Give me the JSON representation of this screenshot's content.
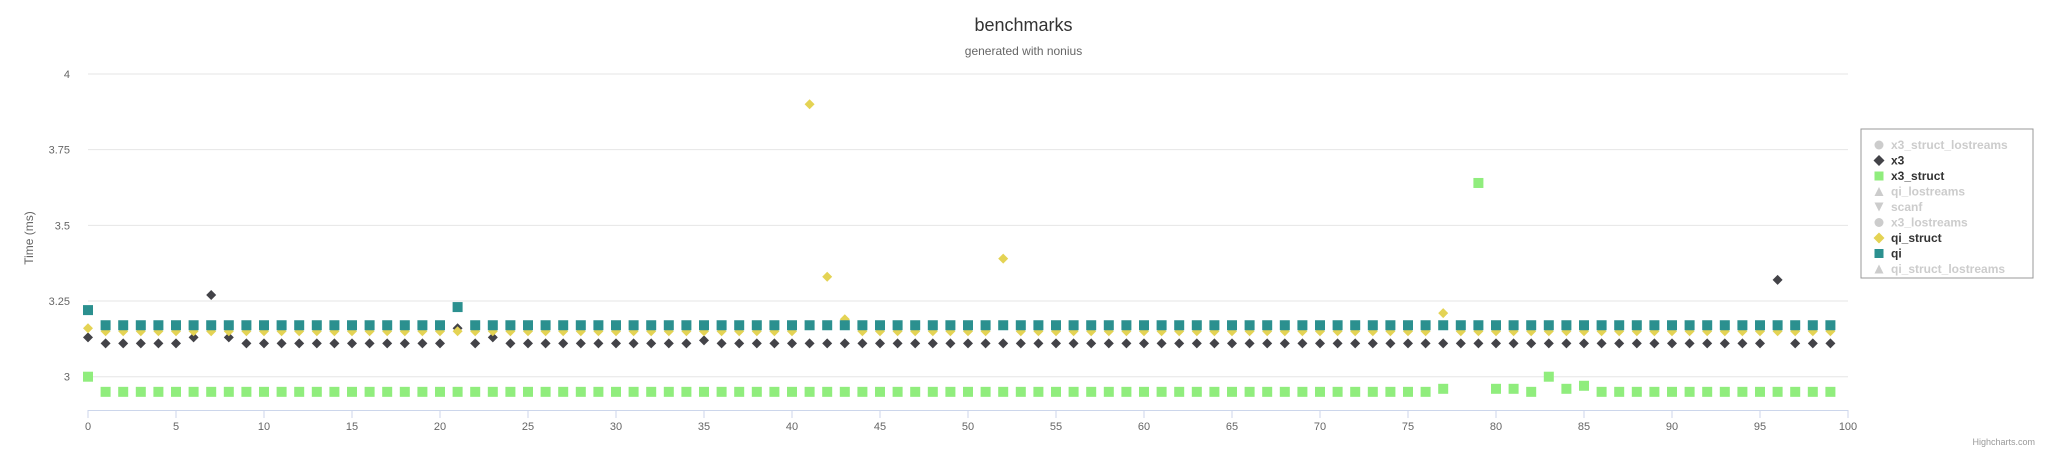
{
  "chart_data": {
    "type": "scatter",
    "title": "benchmarks",
    "subtitle": "generated with nonius",
    "ylabel": "Time (ms)",
    "xlabel": "",
    "xlim": [
      0,
      100
    ],
    "ylim": [
      2.89,
      4.0
    ],
    "xticks": [
      0,
      5,
      10,
      15,
      20,
      25,
      30,
      35,
      40,
      45,
      50,
      55,
      60,
      65,
      70,
      75,
      80,
      85,
      90,
      95,
      100
    ],
    "yticks": [
      3,
      3.25,
      3.5,
      3.75,
      4
    ],
    "grid": "horizontal",
    "legend_position": "right",
    "credits": "Highcharts.com",
    "series": [
      {
        "name": "x3_struct_lostreams",
        "visible": false,
        "marker": "circle",
        "color": "#cccccc",
        "values": []
      },
      {
        "name": "x3",
        "visible": true,
        "marker": "diamond",
        "color": "#434348",
        "values": [
          3.13,
          3.11,
          3.11,
          3.11,
          3.11,
          3.11,
          3.13,
          3.27,
          3.13,
          3.11,
          3.11,
          3.11,
          3.11,
          3.11,
          3.11,
          3.11,
          3.11,
          3.11,
          3.11,
          3.11,
          3.11,
          3.16,
          3.11,
          3.13,
          3.11,
          3.11,
          3.11,
          3.11,
          3.11,
          3.11,
          3.11,
          3.11,
          3.11,
          3.11,
          3.11,
          3.12,
          3.11,
          3.11,
          3.11,
          3.11,
          3.11,
          3.11,
          3.11,
          3.11,
          3.11,
          3.11,
          3.11,
          3.11,
          3.11,
          3.11,
          3.11,
          3.11,
          3.11,
          3.11,
          3.11,
          3.11,
          3.11,
          3.11,
          3.11,
          3.11,
          3.11,
          3.11,
          3.11,
          3.11,
          3.11,
          3.11,
          3.11,
          3.11,
          3.11,
          3.11,
          3.11,
          3.11,
          3.11,
          3.11,
          3.11,
          3.11,
          3.11,
          3.11,
          3.11,
          3.11,
          3.11,
          3.11,
          3.11,
          3.11,
          3.11,
          3.11,
          3.11,
          3.11,
          3.11,
          3.11,
          3.11,
          3.11,
          3.11,
          3.11,
          3.11,
          3.11,
          3.32,
          3.11,
          3.11,
          3.11
        ]
      },
      {
        "name": "x3_struct",
        "visible": true,
        "marker": "square",
        "color": "#90ed7d",
        "values": [
          3.0,
          2.95,
          2.95,
          2.95,
          2.95,
          2.95,
          2.95,
          2.95,
          2.95,
          2.95,
          2.95,
          2.95,
          2.95,
          2.95,
          2.95,
          2.95,
          2.95,
          2.95,
          2.95,
          2.95,
          2.95,
          2.95,
          2.95,
          2.95,
          2.95,
          2.95,
          2.95,
          2.95,
          2.95,
          2.95,
          2.95,
          2.95,
          2.95,
          2.95,
          2.95,
          2.95,
          2.95,
          2.95,
          2.95,
          2.95,
          2.95,
          2.95,
          2.95,
          2.95,
          2.95,
          2.95,
          2.95,
          2.95,
          2.95,
          2.95,
          2.95,
          2.95,
          2.95,
          2.95,
          2.95,
          2.95,
          2.95,
          2.95,
          2.95,
          2.95,
          2.95,
          2.95,
          2.95,
          2.95,
          2.95,
          2.95,
          2.95,
          2.95,
          2.95,
          2.95,
          2.95,
          2.95,
          2.95,
          2.95,
          2.95,
          2.95,
          2.95,
          2.96,
          null,
          3.64,
          2.96,
          2.96,
          2.95,
          3.0,
          2.96,
          2.97,
          2.95,
          2.95,
          2.95,
          2.95,
          2.95,
          2.95,
          2.95,
          2.95,
          2.95,
          2.95,
          2.95,
          2.95,
          2.95,
          2.95
        ]
      },
      {
        "name": "qi_lostreams",
        "visible": false,
        "marker": "triangle",
        "color": "#cccccc",
        "values": []
      },
      {
        "name": "scanf",
        "visible": false,
        "marker": "triangle-down",
        "color": "#cccccc",
        "values": []
      },
      {
        "name": "x3_lostreams",
        "visible": false,
        "marker": "circle",
        "color": "#cccccc",
        "values": []
      },
      {
        "name": "qi_struct",
        "visible": true,
        "marker": "diamond",
        "color": "#e4d354",
        "values": [
          3.16,
          3.15,
          3.15,
          3.15,
          3.15,
          3.15,
          3.15,
          3.15,
          3.15,
          3.15,
          3.15,
          3.15,
          3.15,
          3.15,
          3.15,
          3.15,
          3.15,
          3.15,
          3.15,
          3.15,
          3.15,
          3.15,
          3.15,
          3.15,
          3.15,
          3.15,
          3.15,
          3.15,
          3.15,
          3.15,
          3.15,
          3.15,
          3.15,
          3.15,
          3.15,
          3.15,
          3.15,
          3.15,
          3.15,
          3.15,
          3.15,
          3.9,
          3.33,
          3.19,
          3.15,
          3.15,
          3.15,
          3.15,
          3.15,
          3.15,
          3.15,
          3.15,
          3.39,
          3.15,
          3.15,
          3.15,
          3.15,
          3.15,
          3.15,
          3.15,
          3.15,
          3.15,
          3.15,
          3.15,
          3.15,
          3.15,
          3.15,
          3.15,
          3.15,
          3.15,
          3.15,
          3.15,
          3.15,
          3.15,
          3.15,
          3.15,
          3.15,
          3.21,
          3.15,
          3.15,
          3.15,
          3.15,
          3.15,
          3.15,
          3.15,
          3.15,
          3.15,
          3.15,
          3.15,
          3.15,
          3.15,
          3.15,
          3.15,
          3.15,
          3.15,
          3.15,
          3.15,
          3.15,
          3.15,
          3.15
        ]
      },
      {
        "name": "qi",
        "visible": true,
        "marker": "square",
        "color": "#2b908f",
        "values": [
          3.22,
          3.17,
          3.17,
          3.17,
          3.17,
          3.17,
          3.17,
          3.17,
          3.17,
          3.17,
          3.17,
          3.17,
          3.17,
          3.17,
          3.17,
          3.17,
          3.17,
          3.17,
          3.17,
          3.17,
          3.17,
          3.23,
          3.17,
          3.17,
          3.17,
          3.17,
          3.17,
          3.17,
          3.17,
          3.17,
          3.17,
          3.17,
          3.17,
          3.17,
          3.17,
          3.17,
          3.17,
          3.17,
          3.17,
          3.17,
          3.17,
          3.17,
          3.17,
          3.17,
          3.17,
          3.17,
          3.17,
          3.17,
          3.17,
          3.17,
          3.17,
          3.17,
          3.17,
          3.17,
          3.17,
          3.17,
          3.17,
          3.17,
          3.17,
          3.17,
          3.17,
          3.17,
          3.17,
          3.17,
          3.17,
          3.17,
          3.17,
          3.17,
          3.17,
          3.17,
          3.17,
          3.17,
          3.17,
          3.17,
          3.17,
          3.17,
          3.17,
          3.17,
          3.17,
          3.17,
          3.17,
          3.17,
          3.17,
          3.17,
          3.17,
          3.17,
          3.17,
          3.17,
          3.17,
          3.17,
          3.17,
          3.17,
          3.17,
          3.17,
          3.17,
          3.17,
          3.17,
          3.17,
          3.17,
          3.17
        ]
      },
      {
        "name": "qi_struct_lostreams",
        "visible": false,
        "marker": "triangle",
        "color": "#cccccc",
        "values": []
      }
    ]
  }
}
